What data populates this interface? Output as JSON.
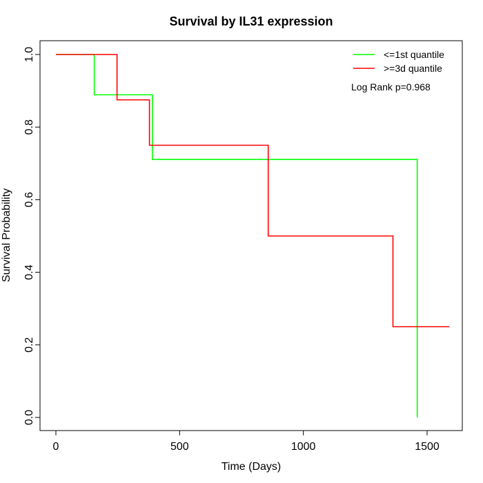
{
  "chart_data": {
    "type": "line",
    "title": "Survival by IL31 expression",
    "xlabel": "Time (Days)",
    "ylabel": "Survival Probability",
    "xlim": [
      0,
      1600
    ],
    "ylim": [
      0,
      1
    ],
    "x_ticks": [
      0,
      500,
      1000,
      1500
    ],
    "y_ticks": [
      0.0,
      0.2,
      0.4,
      0.6,
      0.8,
      1.0
    ],
    "x_tick_labels": [
      "0",
      "500",
      "1000",
      "1500"
    ],
    "y_tick_labels": [
      "0.0",
      "0.2",
      "0.4",
      "0.6",
      "0.8",
      "1.0"
    ],
    "step_style": "post",
    "series": [
      {
        "name": "<=1st quantile",
        "color": "#00ff00",
        "x": [
          0,
          155,
          390,
          1460,
          1460
        ],
        "y": [
          1.0,
          0.889,
          0.711,
          0.711,
          0.0
        ]
      },
      {
        "name": ">=3d quantile",
        "color": "#ff0000",
        "x": [
          0,
          247,
          378,
          858,
          1362,
          1590
        ],
        "y": [
          1.0,
          0.875,
          0.75,
          0.5,
          0.25,
          0.25
        ]
      }
    ],
    "legend_position": "top-right",
    "annotation": "Log Rank p=0.968",
    "grid": false
  }
}
